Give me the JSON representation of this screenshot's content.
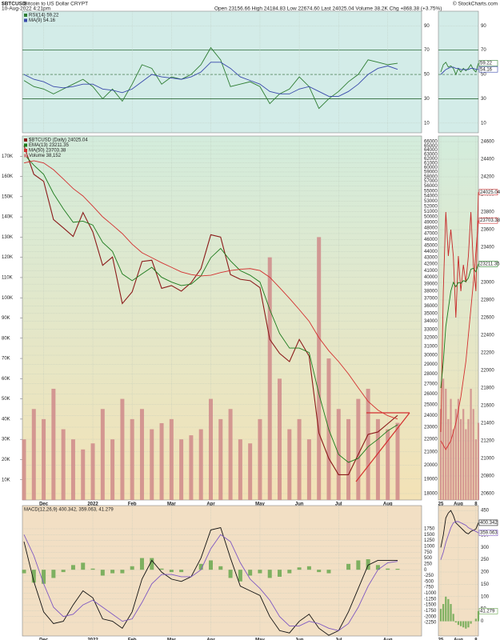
{
  "header": {
    "symbol": "$BTCUSD",
    "name": "Bitcoin to US Dollar CRYPT",
    "date": "10-Aug-2022 4:21pm",
    "quote": "Open 23156.66 High 24184.83 Low 22674.60 Last 24025.04 Volume 38.2K Chg +868.38 (+3.75%)",
    "credit": "© StockCharts.com"
  },
  "chart_data": [
    {
      "type": "line",
      "background": "#d3ece8",
      "categories": [
        null,
        null,
        "Dec",
        null,
        null,
        null,
        null,
        "2022",
        null,
        null,
        null,
        "Feb",
        null,
        null,
        null,
        "Mar",
        null,
        null,
        null,
        "Apr",
        null,
        null,
        null,
        null,
        "May",
        null,
        null,
        null,
        "Jun",
        null,
        null,
        null,
        "Jul",
        null,
        null,
        null,
        null,
        "Aug",
        null
      ],
      "ylim": [
        2,
        102
      ],
      "yticks": [
        10,
        30,
        50,
        70,
        90
      ],
      "levels": [
        30,
        70
      ],
      "midline": 50,
      "series": [
        {
          "name": "RSI(14) 59.22",
          "color": "#2e7d32",
          "values": [
            45,
            40,
            38,
            34,
            38,
            42,
            46,
            40,
            30,
            38,
            28,
            42,
            58,
            55,
            42,
            48,
            46,
            50,
            58,
            72,
            62,
            40,
            42,
            44,
            40,
            26,
            34,
            38,
            48,
            40,
            22,
            30,
            36,
            44,
            50,
            62,
            60,
            58,
            59.22
          ]
        },
        {
          "name": "MA(9) 54.16",
          "color": "#3949ab",
          "values": [
            50,
            46,
            44,
            40,
            39,
            40,
            42,
            42,
            38,
            37,
            35,
            38,
            44,
            50,
            48,
            47,
            46,
            48,
            52,
            60,
            60,
            55,
            48,
            45,
            42,
            36,
            34,
            34,
            38,
            40,
            36,
            32,
            32,
            36,
            42,
            50,
            55,
            57,
            54.16
          ]
        }
      ]
    },
    {
      "type": "line",
      "log": true,
      "background": [
        "#d3ecdc",
        "#f3e2b6"
      ],
      "show_x_labels": true,
      "categories": [
        null,
        null,
        "Dec",
        null,
        null,
        null,
        null,
        "2022",
        null,
        null,
        null,
        "Feb",
        null,
        null,
        null,
        "Mar",
        null,
        null,
        null,
        "Apr",
        null,
        null,
        null,
        null,
        "May",
        null,
        null,
        null,
        "Jun",
        null,
        null,
        null,
        "Jul",
        null,
        null,
        null,
        null,
        "Aug",
        null
      ],
      "ylim": [
        17580,
        67380
      ],
      "yticks": [
        18000,
        19000,
        20000,
        21000,
        22000,
        23000,
        24000,
        25000,
        26000,
        27000,
        28000,
        29000,
        30000,
        31000,
        32000,
        33000,
        34000,
        35000,
        36000,
        37000,
        38000,
        39000,
        40000,
        41000,
        42000,
        43000,
        44000,
        45000,
        46000,
        47000,
        48000,
        49000,
        50000,
        51000,
        52000,
        53000,
        54000,
        55000,
        56000,
        57000,
        58000,
        59000,
        60000,
        61000,
        62000,
        63000,
        64000,
        65000,
        66000
      ],
      "y2lim": [
        0,
        180000
      ],
      "y2ticks": [
        {
          "value": 10000,
          "label": "10K"
        },
        {
          "value": 20000,
          "label": "20K"
        },
        {
          "value": 30000,
          "label": "30K"
        },
        {
          "value": 40000,
          "label": "40K"
        },
        {
          "value": 50000,
          "label": "50K"
        },
        {
          "value": 60000,
          "label": "60K"
        },
        {
          "value": 70000,
          "label": "70K"
        },
        {
          "value": 80000,
          "label": "80K"
        },
        {
          "value": 90000,
          "label": "90K"
        },
        {
          "value": 100000,
          "label": "100K"
        },
        {
          "value": 110000,
          "label": "110K"
        },
        {
          "value": 120000,
          "label": "120K"
        },
        {
          "value": 130000,
          "label": "130K"
        },
        {
          "value": 140000,
          "label": "140K"
        },
        {
          "value": 150000,
          "label": "150K"
        },
        {
          "value": 160000,
          "label": "160K"
        },
        {
          "value": 170000,
          "label": "170K"
        }
      ],
      "series": [
        {
          "name": "$BTCUSD (Daily) 24025.04",
          "color": "#8b1a1a",
          "values": [
            65000,
            58500,
            57000,
            49500,
            48000,
            46500,
            50800,
            47300,
            41800,
            43100,
            36300,
            37900,
            42400,
            42600,
            38400,
            38800,
            38000,
            39200,
            41300,
            46800,
            46400,
            40400,
            39700,
            39500,
            38500,
            31800,
            30200,
            29300,
            31800,
            29900,
            22500,
            20500,
            19300,
            19300,
            20800,
            22400,
            22600,
            23300,
            24025.04
          ]
        },
        {
          "name": "EMA(13) 23211.35",
          "color": "#1b7a1b",
          "values": [
            63000,
            60500,
            58500,
            54500,
            51500,
            49000,
            49200,
            48500,
            45500,
            44000,
            40500,
            39500,
            40500,
            41500,
            40000,
            39300,
            38800,
            39000,
            40200,
            43000,
            44500,
            42500,
            41000,
            40300,
            39300,
            35500,
            32500,
            30800,
            30800,
            30300,
            26000,
            22800,
            20800,
            20200,
            20500,
            21400,
            22000,
            22700,
            23211.35
          ]
        },
        {
          "name": "MA(50) 23703.38",
          "color": "#d32f2f",
          "values": [
            61000,
            61500,
            61000,
            59500,
            57500,
            55500,
            54000,
            52000,
            50000,
            48500,
            47000,
            45200,
            43800,
            43000,
            42200,
            41500,
            40800,
            40400,
            40200,
            40300,
            40700,
            41000,
            41200,
            41300,
            41000,
            40000,
            38500,
            37000,
            35500,
            34000,
            32000,
            30500,
            29300,
            28000,
            26600,
            25300,
            24500,
            24000,
            23703.38
          ]
        },
        {
          "name": "Volume 38,152",
          "color": "#cf8a8a",
          "style": "bar",
          "axis": "y2",
          "values": [
            30000,
            45000,
            40000,
            55000,
            35000,
            30000,
            25000,
            28000,
            45000,
            30000,
            50000,
            40000,
            45000,
            35000,
            38000,
            40000,
            30000,
            32000,
            35000,
            50000,
            40000,
            45000,
            30000,
            28000,
            40000,
            120000,
            60000,
            35000,
            40000,
            30000,
            130000,
            70000,
            45000,
            40000,
            50000,
            55000,
            40000,
            35000,
            38152
          ]
        }
      ]
    },
    {
      "type": "line",
      "background": "#f2dfc4",
      "show_x_labels": true,
      "title": "MACD(12,26,9) 400.342, 359.063, 41.279",
      "categories": [
        null,
        null,
        "Dec",
        null,
        null,
        null,
        null,
        "2022",
        null,
        null,
        null,
        "Feb",
        null,
        null,
        null,
        "Mar",
        null,
        null,
        null,
        "Apr",
        null,
        null,
        null,
        null,
        "May",
        null,
        null,
        null,
        "Jun",
        null,
        null,
        null,
        "Jul",
        null,
        null,
        null,
        null,
        "Aug",
        null
      ],
      "ylim": [
        -2830,
        2740
      ],
      "yticks": [
        1750,
        1500,
        1250,
        1000,
        750,
        500,
        250,
        0,
        -250,
        -500,
        -750,
        -1000,
        -1250,
        -1500,
        -1750,
        -2000,
        -2250
      ],
      "series": [
        {
          "color": "#6aa84f",
          "style": "bar",
          "values": [
            -150,
            -550,
            -600,
            -350,
            -100,
            200,
            300,
            50,
            -250,
            -150,
            -150,
            150,
            500,
            500,
            50,
            -100,
            -100,
            0,
            250,
            400,
            150,
            -350,
            -500,
            -250,
            -150,
            -350,
            -300,
            -150,
            100,
            150,
            -100,
            -150,
            0,
            250,
            400,
            450,
            200,
            50,
            41.279
          ]
        },
        {
          "color": "#111111",
          "values": [
            1200,
            -500,
            -1800,
            -2300,
            -2200,
            -1500,
            -900,
            -1200,
            -2100,
            -2200,
            -2500,
            -1800,
            -400,
            400,
            -100,
            -400,
            -500,
            -300,
            500,
            1700,
            1800,
            500,
            -700,
            -900,
            -1100,
            -2000,
            -2600,
            -2700,
            -2200,
            -1900,
            -2500,
            -2800,
            -2600,
            -1800,
            -800,
            200,
            400,
            400,
            400.342
          ]
        },
        {
          "color": "#7e57c2",
          "values": [
            1500,
            600,
            -600,
            -1600,
            -2000,
            -1900,
            -1500,
            -1300,
            -1600,
            -1900,
            -2200,
            -2100,
            -1400,
            -600,
            -200,
            -200,
            -300,
            -300,
            0,
            900,
            1500,
            1200,
            300,
            -400,
            -800,
            -1300,
            -2000,
            -2400,
            -2400,
            -2200,
            -2300,
            -2500,
            -2600,
            -2300,
            -1600,
            -700,
            0,
            300,
            359.063
          ]
        }
      ]
    },
    {
      "type": "line",
      "background": "#d3ece8",
      "categories": [
        null,
        null,
        null,
        null,
        null,
        null,
        null,
        null,
        null,
        null,
        null,
        null,
        null,
        null,
        null,
        null
      ],
      "ylim": [
        2,
        102
      ],
      "yticks": [
        10,
        30,
        50,
        70,
        90
      ],
      "levels": [
        30,
        70
      ],
      "midline": 50,
      "series": [
        {
          "color": "#2e7d32",
          "last_label": "59.22",
          "values": [
            52,
            58,
            60,
            56,
            57,
            55,
            50,
            55,
            52,
            55,
            53,
            55,
            58,
            54,
            52,
            59.22
          ]
        },
        {
          "color": "#3949ab",
          "last_label": "54.16",
          "values": [
            50,
            52,
            54,
            55,
            56,
            56,
            55,
            55,
            54,
            54,
            54,
            54,
            55,
            55,
            54,
            54.16
          ]
        }
      ]
    },
    {
      "type": "line",
      "background": [
        "#d3ecdc",
        "#f3e2b6"
      ],
      "show_x_labels": true,
      "categories": [
        "25",
        null,
        null,
        null,
        null,
        null,
        null,
        "Aug",
        null,
        null,
        null,
        null,
        null,
        null,
        "8",
        null
      ],
      "ylim": [
        20527,
        24664
      ],
      "yticks": [
        20600,
        20800,
        21000,
        21200,
        21400,
        21600,
        21800,
        22000,
        22200,
        22400,
        22600,
        22800,
        23000,
        23200,
        23400,
        23600,
        23800,
        24000,
        24200,
        24400,
        24600
      ],
      "y2lim": [
        0,
        180000
      ],
      "series": [
        {
          "color": "#cf8a8a",
          "style": "bar",
          "axis": "y2",
          "values": [
            45000,
            60000,
            55000,
            40000,
            50000,
            35000,
            45000,
            50000,
            40000,
            45000,
            35000,
            40000,
            55000,
            45000,
            30000,
            38152
          ]
        },
        {
          "color": "#c62828",
          "last_label": "24025.04",
          "values": [
            21300,
            22900,
            23800,
            23300,
            23600,
            23300,
            22600,
            23300,
            22900,
            23200,
            23000,
            23300,
            23800,
            23200,
            22900,
            24025.04
          ]
        },
        {
          "color": "#1b7a1b",
          "last_label": "23211.35",
          "values": [
            21800,
            22100,
            22500,
            22700,
            22900,
            23000,
            22950,
            23000,
            22990,
            23020,
            23010,
            23050,
            23150,
            23160,
            23120,
            23211.35
          ]
        },
        {
          "color": "#d32f2f",
          "last_label": "23703.38",
          "values": [
            21200,
            21150,
            21100,
            21150,
            21200,
            21300,
            21400,
            21550,
            21700,
            21900,
            22100,
            22400,
            22700,
            23000,
            23350,
            23703.38
          ]
        }
      ]
    },
    {
      "type": "line",
      "background": "#f2dfc4",
      "show_x_labels": true,
      "categories": [
        "25",
        null,
        null,
        null,
        null,
        null,
        null,
        "Aug",
        null,
        null,
        null,
        null,
        null,
        null,
        "8",
        null
      ],
      "ylim": [
        -60,
        470
      ],
      "yticks": [
        450,
        400,
        350,
        300,
        250,
        200,
        150,
        100,
        50,
        0
      ],
      "series": [
        {
          "color": "#6aa84f",
          "style": "bar",
          "last_label": "41.279",
          "values": [
            50,
            70,
            100,
            90,
            70,
            30,
            -5,
            -15,
            -20,
            -25,
            -30,
            -25,
            -10,
            0,
            10,
            41.279
          ]
        },
        {
          "color": "#111111",
          "last_label": "400.342",
          "values": [
            300,
            350,
            420,
            440,
            450,
            430,
            400,
            390,
            380,
            370,
            360,
            355,
            365,
            370,
            375,
            400.342
          ]
        },
        {
          "color": "#7e57c2",
          "last_label": "359.063",
          "values": [
            250,
            280,
            320,
            350,
            380,
            400,
            405,
            405,
            400,
            395,
            390,
            380,
            375,
            370,
            365,
            359.063
          ]
        }
      ]
    }
  ]
}
